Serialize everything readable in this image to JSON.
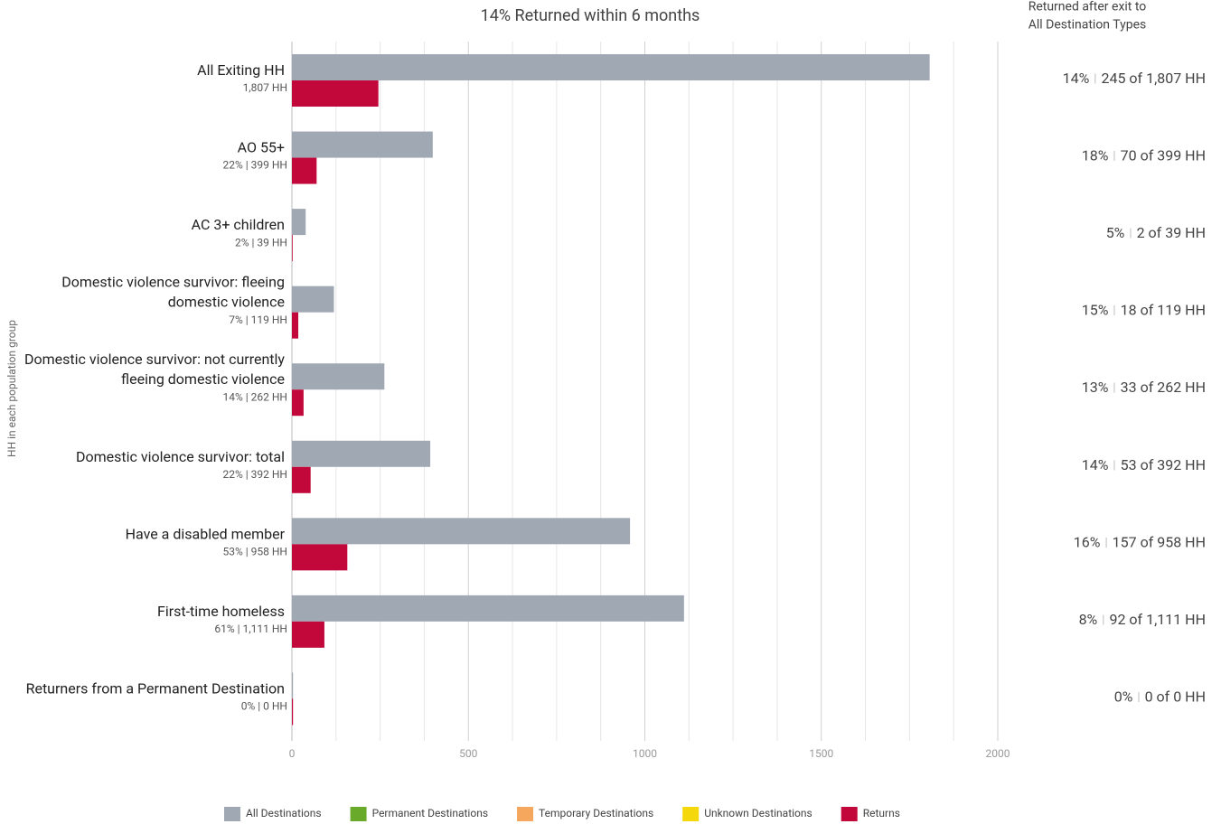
{
  "chart_data": {
    "type": "hbar",
    "title": "14% Returned within 6 months",
    "right_header": [
      "Returned after exit to",
      "All Destination Types"
    ],
    "ylabel": "HH in each population group",
    "categories": [
      "All Exiting HH",
      "AO 55+",
      "AC 3+ children",
      "Domestic violence survivor: fleeing domestic violence",
      "Domestic violence survivor: not currently fleeing domestic violence",
      "Domestic violence survivor: total",
      "Have a disabled member",
      "First-time homeless",
      "Returners from a Permanent Destination"
    ],
    "sublabels": [
      "1,807 HH",
      "22% | 399 HH",
      "2% | 39 HH",
      "7% | 119 HH",
      "14% | 262 HH",
      "22% | 392 HH",
      "53% | 958 HH",
      "61% | 1,111 HH",
      "0% | 0 HH"
    ],
    "rate_labels": [
      "14%",
      "18%",
      "5%",
      "15%",
      "13%",
      "14%",
      "16%",
      "8%",
      "0%"
    ],
    "separator": "|",
    "count_labels": [
      "245 of 1,807 HH",
      "70 of 399 HH",
      "2 of 39 HH",
      "18 of 119 HH",
      "33 of 262 HH",
      "53 of 392 HH",
      "157 of 958 HH",
      "92 of 1,111 HH",
      "0 of 0 HH"
    ],
    "series": [
      {
        "name": "All Destinations",
        "color": "#a0a8b4",
        "values": [
          1807,
          399,
          39,
          119,
          262,
          392,
          958,
          1111,
          0
        ]
      },
      {
        "name": "Permanent Destinations",
        "color": "#6aaa2a",
        "values": [
          null,
          null,
          null,
          null,
          null,
          null,
          null,
          null,
          null
        ]
      },
      {
        "name": "Temporary Destinations",
        "color": "#f6a75e",
        "values": [
          null,
          null,
          null,
          null,
          null,
          null,
          null,
          null,
          null
        ]
      },
      {
        "name": "Unknown Destinations",
        "color": "#f5d80c",
        "values": [
          null,
          null,
          null,
          null,
          null,
          null,
          null,
          null,
          null
        ]
      },
      {
        "name": "Returns",
        "color": "#c2073b",
        "values": [
          245,
          70,
          2,
          18,
          33,
          53,
          157,
          92,
          0
        ]
      }
    ],
    "xlim": [
      0,
      2000
    ],
    "xticks": [
      0,
      500,
      1000,
      1500,
      2000
    ],
    "minor_xticks": [
      125,
      250,
      375,
      625,
      750,
      875,
      1125,
      1250,
      1375,
      1625,
      1750,
      1875
    ],
    "grid": true,
    "legend": "bottom"
  }
}
